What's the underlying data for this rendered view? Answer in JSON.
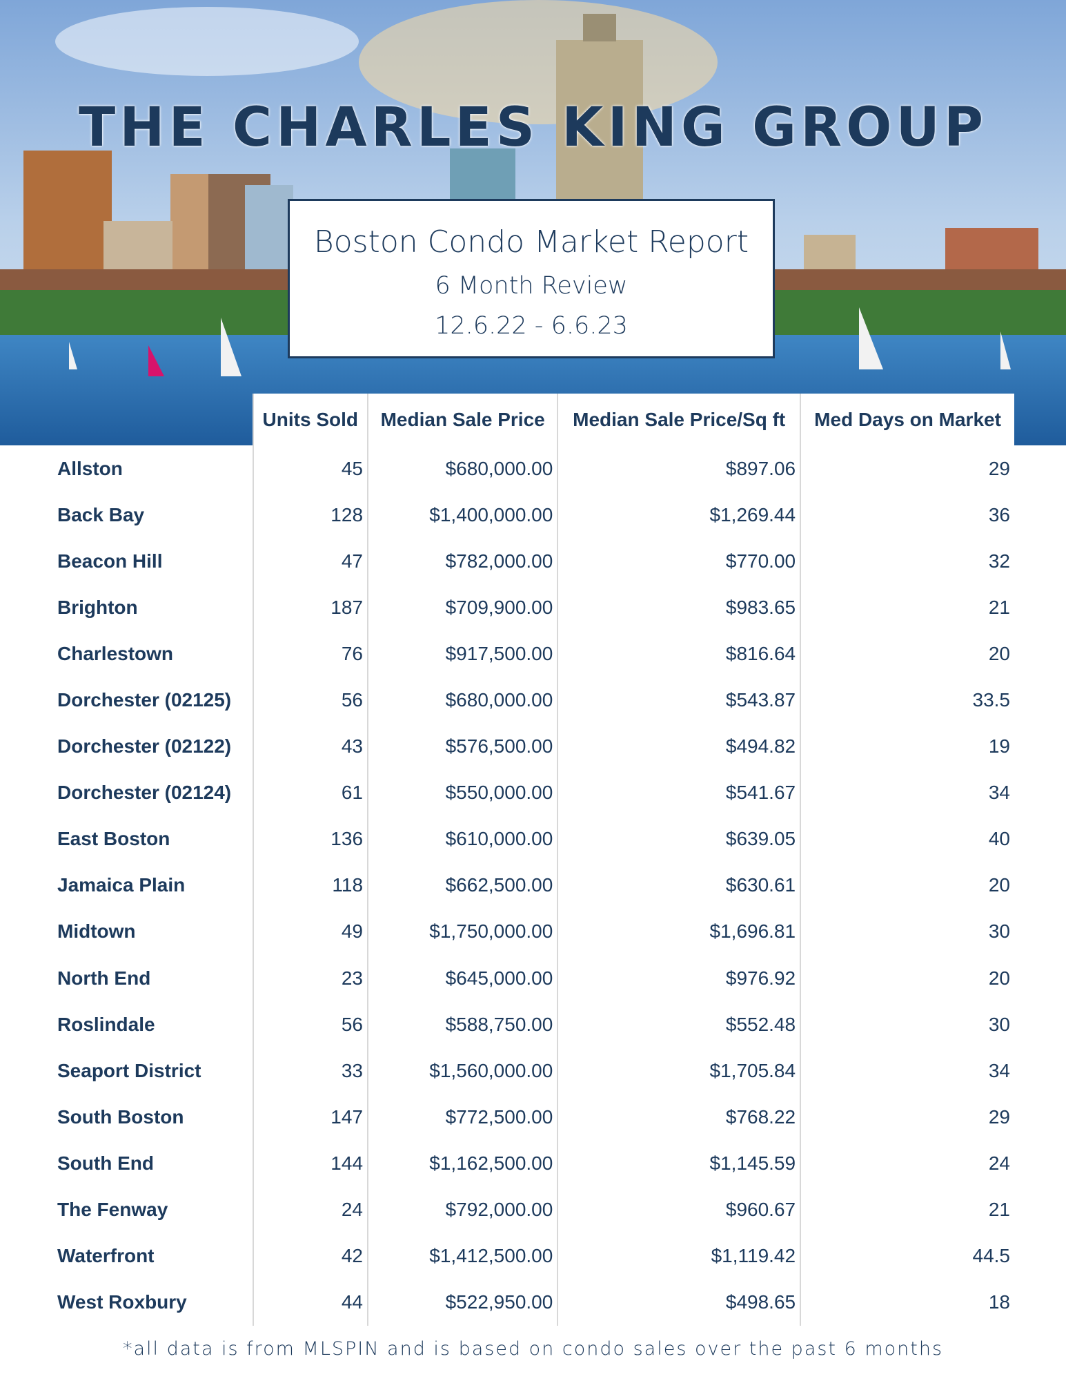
{
  "header": {
    "brand": "THE CHARLES KING GROUP",
    "report_title": "Boston Condo Market Report",
    "subtitle": "6 Month Review",
    "dates": "12.6.22 - 6.6.23"
  },
  "table": {
    "columns": [
      "Units Sold",
      "Median Sale Price",
      "Median Sale Price/Sq ft",
      "Med Days on Market"
    ],
    "rows": [
      [
        "Allston",
        "45",
        "$680,000.00",
        "$897.06",
        "29"
      ],
      [
        "Back Bay",
        "128",
        "$1,400,000.00",
        "$1,269.44",
        "36"
      ],
      [
        "Beacon Hill",
        "47",
        "$782,000.00",
        "$770.00",
        "32"
      ],
      [
        "Brighton",
        "187",
        "$709,900.00",
        "$983.65",
        "21"
      ],
      [
        "Charlestown",
        "76",
        "$917,500.00",
        "$816.64",
        "20"
      ],
      [
        "Dorchester (02125)",
        "56",
        "$680,000.00",
        "$543.87",
        "33.5"
      ],
      [
        "Dorchester (02122)",
        "43",
        "$576,500.00",
        "$494.82",
        "19"
      ],
      [
        "Dorchester (02124)",
        "61",
        "$550,000.00",
        "$541.67",
        "34"
      ],
      [
        "East Boston",
        "136",
        "$610,000.00",
        "$639.05",
        "40"
      ],
      [
        "Jamaica Plain",
        "118",
        "$662,500.00",
        "$630.61",
        "20"
      ],
      [
        "Midtown",
        "49",
        "$1,750,000.00",
        "$1,696.81",
        "30"
      ],
      [
        "North End",
        "23",
        "$645,000.00",
        "$976.92",
        "20"
      ],
      [
        "Roslindale",
        "56",
        "$588,750.00",
        "$552.48",
        "30"
      ],
      [
        "Seaport District",
        "33",
        "$1,560,000.00",
        "$1,705.84",
        "34"
      ],
      [
        "South Boston",
        "147",
        "$772,500.00",
        "$768.22",
        "29"
      ],
      [
        "South End",
        "144",
        "$1,162,500.00",
        "$1,145.59",
        "24"
      ],
      [
        "The Fenway",
        "24",
        "$792,000.00",
        "$960.67",
        "21"
      ],
      [
        "Waterfront",
        "42",
        "$1,412,500.00",
        "$1,119.42",
        "44.5"
      ],
      [
        "West Roxbury",
        "44",
        "$522,950.00",
        "$498.65",
        "18"
      ]
    ]
  },
  "footnote": "*all data is from MLSPIN and is based on condo sales over the past 6 months"
}
